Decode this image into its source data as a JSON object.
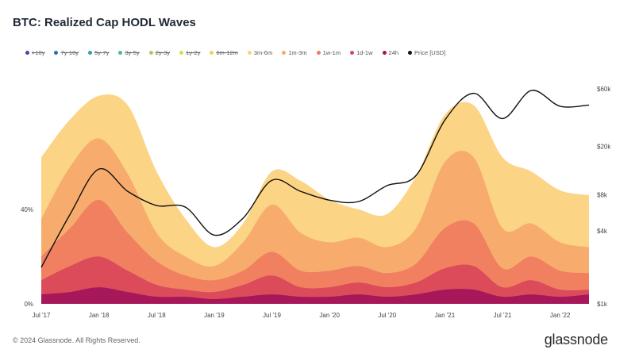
{
  "header": {
    "title": "BTC: Realized Cap HODL Waves"
  },
  "legend": [
    {
      "label": ">10y",
      "color": "#5b3fa0",
      "struck": true
    },
    {
      "label": "7y-10y",
      "color": "#2f6db5",
      "struck": true
    },
    {
      "label": "5y-7y",
      "color": "#2fa0a8",
      "struck": true
    },
    {
      "label": "3y-5y",
      "color": "#4fb98a",
      "struck": true
    },
    {
      "label": "2y-3y",
      "color": "#a6cf5a",
      "struck": true
    },
    {
      "label": "1y-2y",
      "color": "#d9dd4a",
      "struck": true
    },
    {
      "label": "6m-12m",
      "color": "#f3d25a",
      "struck": true
    },
    {
      "label": "3m-6m",
      "color": "#fcd27f",
      "struck": false
    },
    {
      "label": "1m-3m",
      "color": "#f7aa6c",
      "struck": false
    },
    {
      "label": "1w-1m",
      "color": "#ef7d60",
      "struck": false
    },
    {
      "label": "1d-1w",
      "color": "#d9485a",
      "struck": false
    },
    {
      "label": "24h",
      "color": "#a3155a",
      "struck": false
    },
    {
      "label": "Price [USD]",
      "color": "#111111",
      "struck": false
    }
  ],
  "chart_data": {
    "type": "area",
    "title": "BTC: Realized Cap HODL Waves",
    "x": [
      "Jul '17",
      "Oct '17",
      "Jan '18",
      "Apr '18",
      "Jul '18",
      "Oct '18",
      "Jan '19",
      "Apr '19",
      "Jul '19",
      "Oct '19",
      "Jan '20",
      "Apr '20",
      "Jul '20",
      "Oct '20",
      "Jan '21",
      "Apr '21",
      "Jul '21",
      "Oct '21",
      "Jan '22",
      "Feb '22"
    ],
    "x_tick_labels": [
      "Jul '17",
      "Jan '18",
      "Jul '18",
      "Jan '19",
      "Jul '19",
      "Jan '20",
      "Jul '20",
      "Jan '21",
      "Jul '21",
      "Jan '22"
    ],
    "y_left_ticks": [
      "0%",
      "40%"
    ],
    "y_left_range": [
      0,
      100
    ],
    "y_right_ticks": [
      "$1k",
      "$4k",
      "$8k",
      "$20k",
      "$60k"
    ],
    "y_right_range_usd": [
      1000,
      90000
    ],
    "y_right_scale": "log",
    "series": [
      {
        "name": "24h",
        "color": "#a3155a",
        "values": [
          4,
          5,
          7,
          5,
          3,
          3,
          2,
          3,
          4,
          3,
          3,
          4,
          3,
          4,
          6,
          6,
          3,
          4,
          3,
          4
        ]
      },
      {
        "name": "1d-1w",
        "color": "#d9485a",
        "values": [
          10,
          16,
          20,
          14,
          8,
          6,
          5,
          8,
          12,
          7,
          7,
          9,
          7,
          9,
          15,
          16,
          7,
          10,
          6,
          6
        ]
      },
      {
        "name": "1w-1m",
        "color": "#ef7d60",
        "values": [
          20,
          32,
          44,
          30,
          18,
          12,
          10,
          14,
          22,
          14,
          14,
          16,
          13,
          17,
          32,
          34,
          15,
          20,
          14,
          13
        ]
      },
      {
        "name": "1m-3m",
        "color": "#f7aa6c",
        "values": [
          36,
          58,
          70,
          55,
          30,
          20,
          16,
          26,
          42,
          30,
          26,
          28,
          24,
          32,
          60,
          62,
          32,
          34,
          26,
          24
        ]
      },
      {
        "name": "3m-6m",
        "color": "#fcd27f",
        "values": [
          62,
          78,
          88,
          84,
          56,
          36,
          24,
          34,
          56,
          52,
          44,
          40,
          38,
          54,
          80,
          84,
          62,
          56,
          48,
          46
        ]
      }
    ],
    "price_series": {
      "name": "Price [USD]",
      "color": "#111111",
      "values": [
        2000,
        5500,
        13000,
        8500,
        6500,
        6300,
        3700,
        5100,
        10500,
        8500,
        7200,
        7000,
        9500,
        11500,
        33000,
        55000,
        34000,
        58000,
        43000,
        44000
      ]
    },
    "grid": false,
    "legend_position": "top"
  },
  "footer": {
    "copyright": "© 2024 Glassnode. All Rights Reserved.",
    "brand": "glassnode"
  }
}
